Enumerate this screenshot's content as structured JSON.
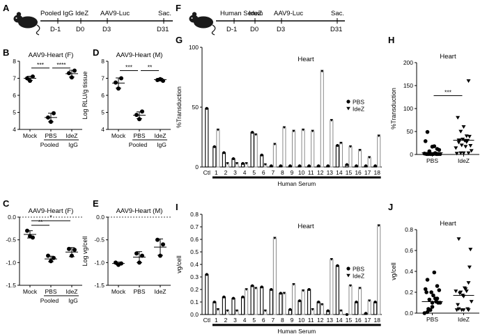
{
  "panel_labels": {
    "A": "A",
    "B": "B",
    "C": "C",
    "D": "D",
    "E": "E",
    "F": "F",
    "G": "G",
    "H": "H",
    "I": "I",
    "J": "J"
  },
  "timeline_a": {
    "events": [
      {
        "label": "Pooled IgG",
        "day": "D-1"
      },
      {
        "label": "IdeZ",
        "day": "D0"
      },
      {
        "label": "AAV9-Luc",
        "day": "D3"
      },
      {
        "label": "Sac.",
        "day": "D31"
      }
    ]
  },
  "timeline_f": {
    "events": [
      {
        "label": "Human Serum",
        "day": "D-1"
      },
      {
        "label": "IdeZ",
        "day": "D0"
      },
      {
        "label": "AAV9-Luc",
        "day": "D3"
      },
      {
        "label": "Sac.",
        "day": "D31"
      }
    ]
  },
  "shared": {
    "pooled_igg_line1": "Pooled",
    "pooled_igg_line2": "IgG",
    "human_serum": "Human Serum"
  },
  "chart_data": [
    {
      "id": "B",
      "type": "scatter",
      "title": "AAV9-Heart (F)",
      "ylabel": "Log RLU/g tissue",
      "ylim": [
        4,
        8
      ],
      "yticks": [
        4,
        5,
        6,
        7,
        8
      ],
      "categories": [
        "Mock",
        "PBS",
        "IdeZ"
      ],
      "points": [
        [
          7.0,
          6.85,
          7.1
        ],
        [
          4.7,
          4.45,
          4.95
        ],
        [
          7.3,
          7.05,
          7.45
        ]
      ],
      "means": [
        7.0,
        4.7,
        7.27
      ],
      "sd": [
        0.12,
        0.25,
        0.2
      ],
      "brackets": [
        {
          "from": 0,
          "to": 1,
          "label": "***",
          "y": 7.6
        },
        {
          "from": 1,
          "to": 2,
          "label": "****",
          "y": 7.6
        }
      ]
    },
    {
      "id": "D",
      "type": "scatter",
      "title": "AAV9-Heart (M)",
      "ylabel": "Log RLU/g tissue",
      "ylim": [
        4,
        8
      ],
      "yticks": [
        4,
        5,
        6,
        7,
        8
      ],
      "categories": [
        "Mock",
        "PBS",
        "IdeZ"
      ],
      "points": [
        [
          6.75,
          6.4,
          7.0
        ],
        [
          4.85,
          4.6,
          5.05
        ],
        [
          6.9,
          6.95,
          6.85
        ]
      ],
      "means": [
        6.72,
        4.83,
        6.92
      ],
      "sd": [
        0.3,
        0.2,
        0.08
      ],
      "brackets": [
        {
          "from": 0,
          "to": 1,
          "label": "***",
          "y": 7.45
        },
        {
          "from": 1,
          "to": 2,
          "label": "**",
          "y": 7.45
        }
      ]
    },
    {
      "id": "C",
      "type": "scatter",
      "title": "AAV9-Heart (F)",
      "ylabel": "Log vg/cell",
      "ylim": [
        -1.5,
        0.0
      ],
      "yticks": [
        -1.5,
        -1.0,
        -0.5,
        0.0
      ],
      "categories": [
        "Mock",
        "PBS",
        "IdeZ"
      ],
      "points": [
        [
          -0.3,
          -0.42,
          -0.45
        ],
        [
          -0.85,
          -0.97,
          -0.9
        ],
        [
          -0.7,
          -0.85,
          -0.72
        ]
      ],
      "means": [
        -0.38,
        -0.92,
        -0.77
      ],
      "sd": [
        0.08,
        0.06,
        0.1
      ],
      "brackets": [
        {
          "from": 0,
          "to": 1,
          "label": "**",
          "y": -0.18
        },
        {
          "from": 0,
          "to": 2,
          "label": "*",
          "y": -0.08
        }
      ]
    },
    {
      "id": "E",
      "type": "scatter",
      "title": "AAV9-Heart (M)",
      "ylabel": "Log vg/cell",
      "ylim": [
        -1.5,
        0.0
      ],
      "yticks": [
        -1.5,
        -1.0,
        -0.5,
        0.0
      ],
      "categories": [
        "Mock",
        "PBS",
        "IdeZ"
      ],
      "points": [
        [
          -1.0,
          -1.05,
          -1.02
        ],
        [
          -0.8,
          -1.0,
          -0.85
        ],
        [
          -0.5,
          -0.85,
          -0.6
        ]
      ],
      "means": [
        -1.02,
        -0.88,
        -0.66
      ],
      "sd": [
        0.03,
        0.12,
        0.18
      ],
      "brackets": []
    },
    {
      "id": "G",
      "type": "bar",
      "title": "Heart",
      "ylabel": "%Transduction",
      "ylim": [
        0,
        100
      ],
      "yticks": [
        0,
        50,
        100
      ],
      "categories": [
        "Ctl",
        "1",
        "2",
        "3",
        "4",
        "5",
        "6",
        "7",
        "8",
        "9",
        "10",
        "11",
        "12",
        "13",
        "14",
        "15",
        "16",
        "17",
        "18"
      ],
      "series": [
        {
          "name": "PBS",
          "values": [
            49,
            17,
            12,
            7,
            3,
            29,
            10,
            1,
            1,
            1,
            1,
            1,
            1,
            1,
            18,
            2,
            1,
            1,
            1
          ]
        },
        {
          "name": "IdeZ",
          "values": [
            null,
            31,
            3,
            3,
            3,
            27,
            2,
            19,
            33,
            30,
            31,
            30,
            80,
            39,
            20,
            17,
            14,
            8,
            26
          ]
        }
      ],
      "legend": "right"
    },
    {
      "id": "I",
      "type": "bar",
      "title": "Heart",
      "ylabel": "vg/cell",
      "ylim": [
        0,
        0.8
      ],
      "yticks": [
        0.0,
        0.1,
        0.2,
        0.3,
        0.4,
        0.5,
        0.6,
        0.7,
        0.8
      ],
      "categories": [
        "Ctl",
        "1",
        "2",
        "3",
        "4",
        "5",
        "6",
        "7",
        "8",
        "9",
        "10",
        "11",
        "12",
        "13",
        "14",
        "15",
        "16",
        "17",
        "18"
      ],
      "series": [
        {
          "name": "PBS",
          "values": [
            0.32,
            0.1,
            0.14,
            0.13,
            0.14,
            0.23,
            0.22,
            0.2,
            0.17,
            0.04,
            0.11,
            0.2,
            0.1,
            0.03,
            0.39,
            0.0,
            0.1,
            0.01,
            0.1
          ]
        },
        {
          "name": "IdeZ",
          "values": [
            null,
            0.04,
            0.03,
            0.03,
            0.2,
            0.21,
            0.03,
            0.61,
            0.17,
            0.24,
            0.19,
            0.04,
            0.08,
            0.44,
            0.03,
            0.23,
            0.21,
            0.11,
            0.71
          ]
        }
      ],
      "legend": "right"
    },
    {
      "id": "H",
      "type": "scatter",
      "title": "Heart",
      "ylabel": "%Transduction",
      "ylim": [
        0,
        200
      ],
      "yticks": [
        0,
        50,
        100,
        150,
        200
      ],
      "categories": [
        "PBS",
        "IdeZ"
      ],
      "points": [
        [
          49,
          17,
          12,
          7,
          3,
          29,
          10,
          1,
          1,
          1,
          1,
          1,
          1,
          1,
          18,
          2,
          1,
          1,
          1
        ],
        [
          31,
          3,
          3,
          3,
          27,
          2,
          19,
          33,
          30,
          31,
          30,
          80,
          39,
          20,
          17,
          14,
          8,
          26,
          160,
          60,
          50,
          40
        ]
      ],
      "medians": [
        4,
        31
      ],
      "brackets": [
        {
          "from": 0,
          "to": 1,
          "label": "***",
          "y": 128
        }
      ]
    },
    {
      "id": "J",
      "type": "scatter",
      "title": "Heart",
      "ylabel": "vg/cell",
      "ylim": [
        0,
        0.8
      ],
      "yticks": [
        0.0,
        0.2,
        0.4,
        0.6,
        0.8
      ],
      "categories": [
        "PBS",
        "IdeZ"
      ],
      "points": [
        [
          0.32,
          0.1,
          0.14,
          0.13,
          0.14,
          0.23,
          0.22,
          0.2,
          0.17,
          0.04,
          0.11,
          0.2,
          0.1,
          0.03,
          0.39,
          0.0,
          0.1,
          0.01,
          0.26,
          0.06
        ],
        [
          0.04,
          0.03,
          0.03,
          0.2,
          0.21,
          0.03,
          0.61,
          0.17,
          0.24,
          0.19,
          0.04,
          0.08,
          0.44,
          0.03,
          0.23,
          0.21,
          0.11,
          0.71,
          0.29,
          0.16
        ]
      ],
      "medians": [
        0.11,
        0.17
      ],
      "brackets": []
    }
  ]
}
